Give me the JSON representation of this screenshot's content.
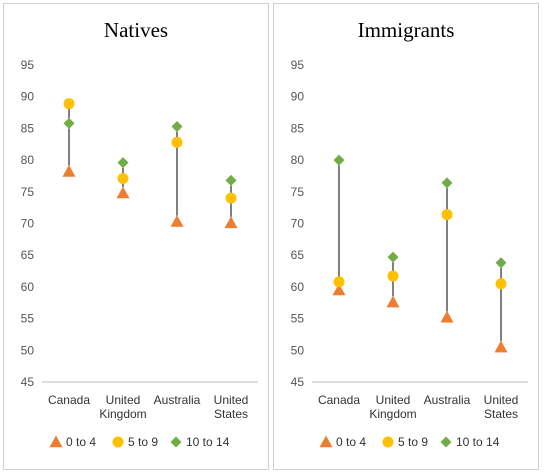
{
  "chart_data": [
    {
      "type": "scatter",
      "title": "Natives",
      "categories": [
        "Canada",
        "United Kingdom",
        "Australia",
        "United States"
      ],
      "category_lines": [
        [
          "Canada"
        ],
        [
          "United",
          "Kingdom"
        ],
        [
          "Australia"
        ],
        [
          "United",
          "States"
        ]
      ],
      "ylim": [
        45,
        95
      ],
      "yticks": [
        45,
        50,
        55,
        60,
        65,
        70,
        75,
        80,
        85,
        90,
        95
      ],
      "grid": false,
      "legend_position": "bottom",
      "series": [
        {
          "name": "0 to 4",
          "marker": "triangle",
          "color": "#ED7D31",
          "values": [
            78.2,
            74.8,
            70.3,
            70.1
          ]
        },
        {
          "name": "5 to 9",
          "marker": "circle",
          "color": "#FFC000",
          "values": [
            88.9,
            77.1,
            82.8,
            74.0
          ]
        },
        {
          "name": "10 to 14",
          "marker": "diamond",
          "color": "#70AD47",
          "values": [
            85.8,
            79.6,
            85.3,
            76.8
          ]
        }
      ]
    },
    {
      "type": "scatter",
      "title": "Immigrants",
      "categories": [
        "Canada",
        "United Kingdom",
        "Australia",
        "United States"
      ],
      "category_lines": [
        [
          "Canada"
        ],
        [
          "United",
          "Kingdom"
        ],
        [
          "Australia"
        ],
        [
          "United",
          "States"
        ]
      ],
      "ylim": [
        45,
        95
      ],
      "yticks": [
        45,
        50,
        55,
        60,
        65,
        70,
        75,
        80,
        85,
        90,
        95
      ],
      "grid": false,
      "legend_position": "bottom",
      "series": [
        {
          "name": "0 to 4",
          "marker": "triangle",
          "color": "#ED7D31",
          "values": [
            59.5,
            57.6,
            55.2,
            50.5
          ]
        },
        {
          "name": "5 to 9",
          "marker": "circle",
          "color": "#FFC000",
          "values": [
            60.8,
            61.7,
            71.4,
            60.5
          ]
        },
        {
          "name": "10 to 14",
          "marker": "diamond",
          "color": "#70AD47",
          "values": [
            80.0,
            64.7,
            76.4,
            63.8
          ]
        }
      ]
    }
  ]
}
